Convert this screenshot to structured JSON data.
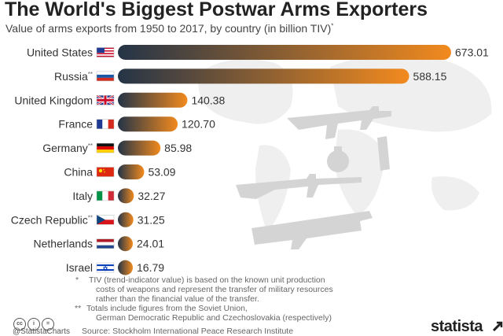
{
  "header": {
    "title": "The World's Biggest Postwar Arms Exporters",
    "subtitle": "Value of arms exports from 1950 to 2017, by country (in billion TIV)",
    "subtitle_mark": "*"
  },
  "chart_data": {
    "type": "bar",
    "orientation": "horizontal",
    "categories": [
      "United States",
      "Russia",
      "United Kingdom",
      "France",
      "Germany",
      "China",
      "Italy",
      "Czech Republic",
      "Netherlands",
      "Israel"
    ],
    "category_marks": [
      "",
      "**",
      "",
      "",
      "**",
      "",
      "",
      "**",
      "",
      ""
    ],
    "values": [
      673.01,
      588.15,
      140.38,
      120.7,
      85.98,
      53.09,
      32.27,
      31.25,
      24.01,
      16.79
    ],
    "value_labels": [
      "673.01",
      "588.15",
      "140.38",
      "120.70",
      "85.98",
      "53.09",
      "32.27",
      "31.25",
      "24.01",
      "16.79"
    ],
    "flags": [
      "us-flag-icon",
      "russia-flag-icon",
      "uk-flag-icon",
      "france-flag-icon",
      "germany-flag-icon",
      "china-flag-icon",
      "italy-flag-icon",
      "czech-flag-icon",
      "netherlands-flag-icon",
      "israel-flag-icon"
    ],
    "bar_gradient": [
      "#243447",
      "#f28a1e"
    ],
    "xlim": [
      0,
      673.01
    ],
    "grid": false
  },
  "notes": {
    "tiv_mark": "*",
    "tiv_text_1": "TIV (trend-indicator value) is based on the known unit production",
    "tiv_text_2": "costs of weapons and represent the transfer of military resources",
    "tiv_text_3": "rather than the financial value of the transfer.",
    "totals_mark": "**",
    "totals_text_1": "Totals include figures from the Soviet Union,",
    "totals_text_2": "German Democratic Republic and Czechoslovakia (respectively)"
  },
  "footer": {
    "cc": "cc",
    "by": "i",
    "nd": "=",
    "handle": "@StatistaCharts",
    "source": "Source: Stockholm International Peace Research Institute",
    "brand": "statista"
  }
}
